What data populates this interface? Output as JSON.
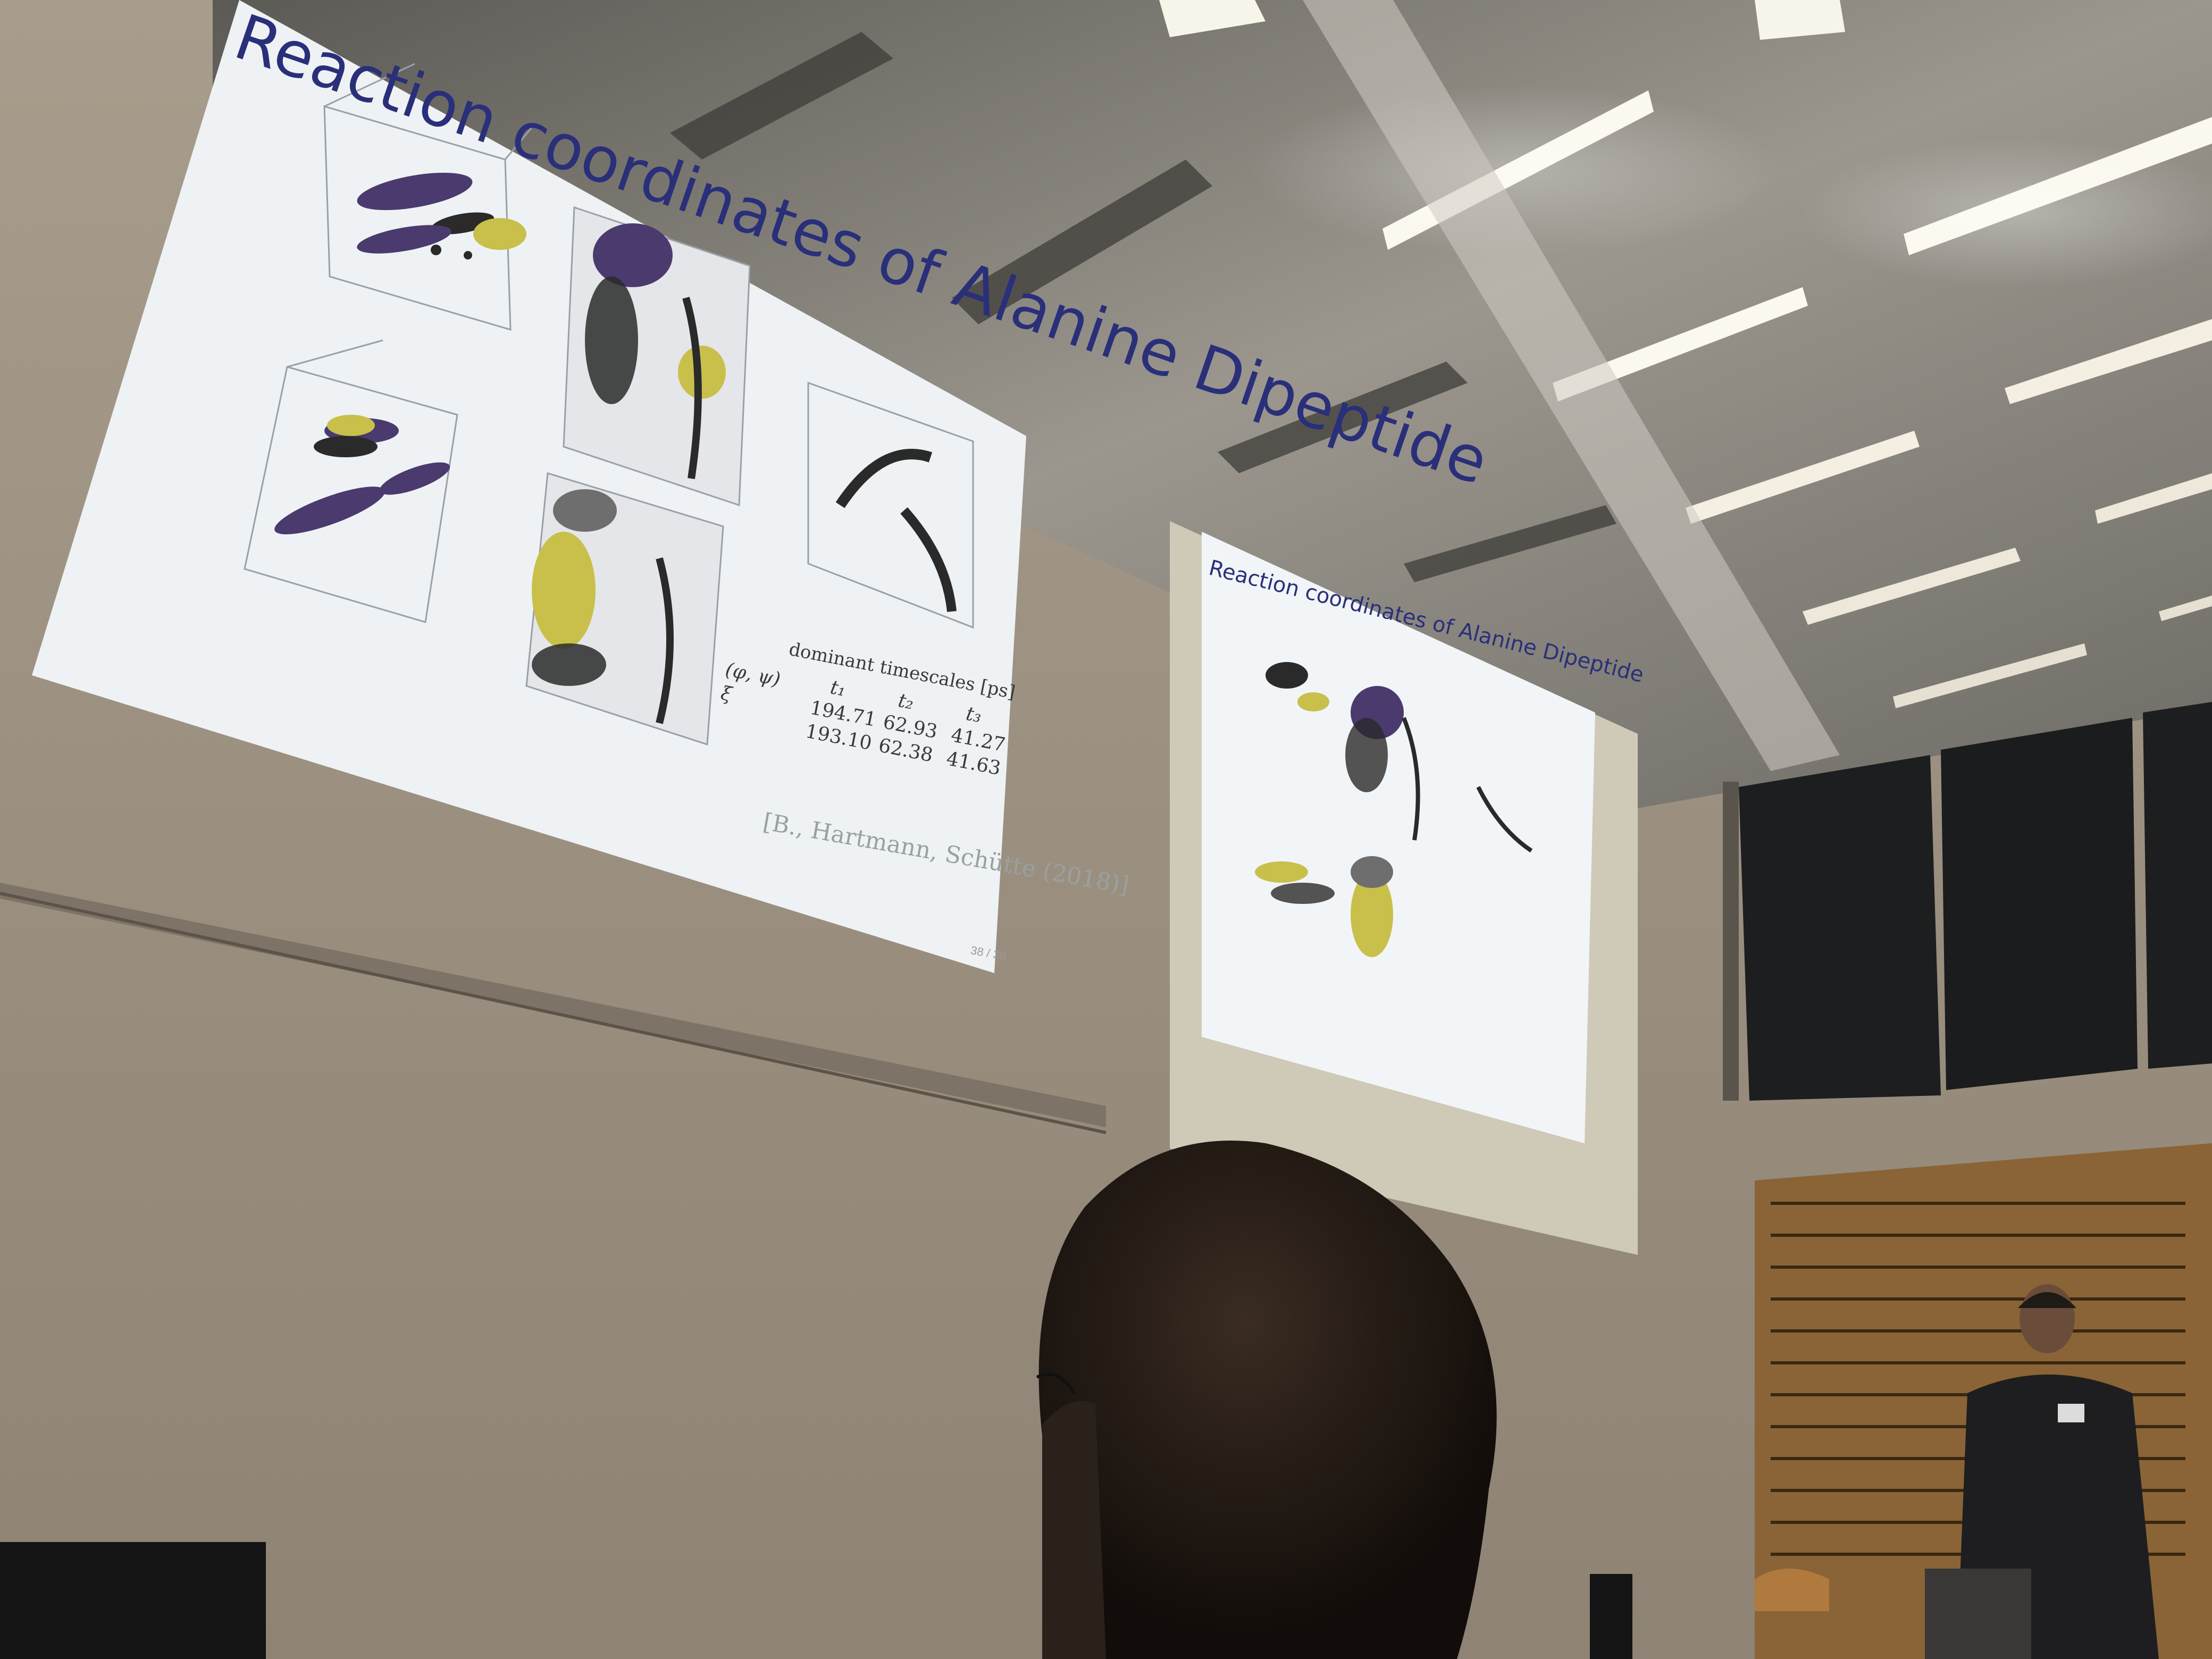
{
  "slide": {
    "title": "Reaction coordinates of Alanine Dipeptide",
    "timescales": {
      "header": "dominant timescales [ps]",
      "columns": [
        "t₁",
        "t₂",
        "t₃"
      ],
      "rows": [
        {
          "label": "(φ, ψ)",
          "values": [
            "194.71",
            "62.93",
            "41.27"
          ]
        },
        {
          "label": "ξ",
          "values": [
            "193.10",
            "62.38",
            "41.63"
          ]
        }
      ]
    },
    "citation": "[B., Hartmann, Schütte (2018)]",
    "page": "38 / 39"
  },
  "second_screen": {
    "title": "Reaction coordinates of Alanine Dipeptide"
  },
  "colors": {
    "wall": "#b8ad9c",
    "ceiling": "#8e8a82",
    "screen": "#f2f5f7",
    "purple_cluster": "#4a3a6e",
    "yellow_cluster": "#c8c04a",
    "dark_points": "#2a2a2a",
    "acoustic_panel": "#8a6436",
    "light_panel": "#fbf8ee"
  }
}
